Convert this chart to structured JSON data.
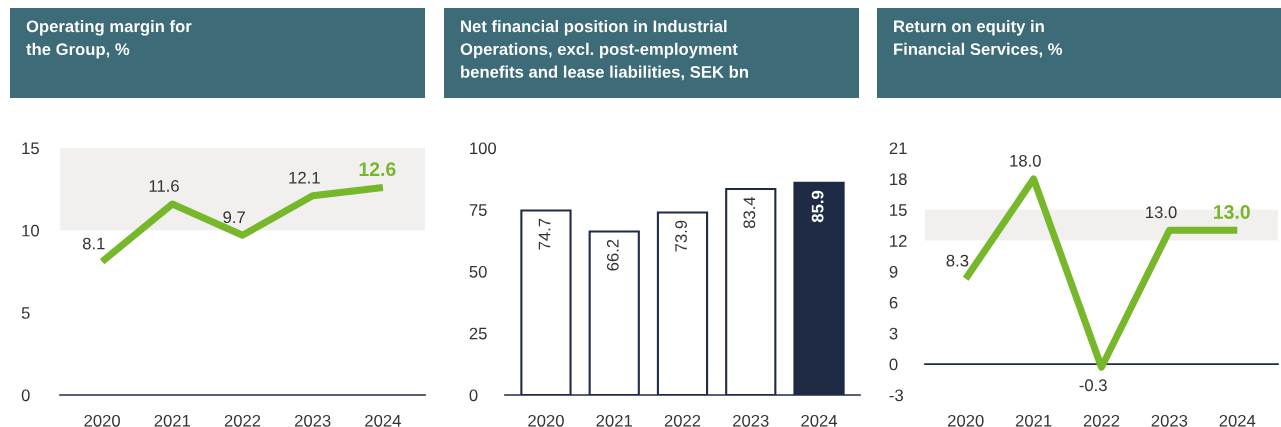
{
  "chart_data": [
    {
      "type": "line",
      "title": "Operating margin for\nthe Group, %",
      "categories": [
        "2020",
        "2021",
        "2022",
        "2023",
        "2024"
      ],
      "series": [
        {
          "color": "#76b82a",
          "values": [
            8.1,
            11.6,
            9.7,
            12.1,
            12.6
          ],
          "value_labels": [
            "8.1",
            "11.6",
            "9.7",
            "12.1",
            "12.6"
          ]
        }
      ],
      "ylim": [
        0,
        15
      ],
      "yticks": [
        0,
        5,
        10,
        15
      ],
      "grid": false,
      "bands": [
        {
          "axis": "y",
          "from": 10,
          "to": 15,
          "color": "#f1f0ee"
        }
      ]
    },
    {
      "type": "bar",
      "title": "Net financial position in Industrial\nOperations, excl. post-employment\nbenefits and lease liabilities, SEK bn",
      "categories": [
        "2020",
        "2021",
        "2022",
        "2023",
        "2024"
      ],
      "values": [
        74.7,
        66.2,
        73.9,
        83.4,
        85.9
      ],
      "colors": [
        "#ffffff",
        "#ffffff",
        "#ffffff",
        "#ffffff",
        "#1f2a44"
      ],
      "ylim": [
        0,
        100
      ],
      "yticks": [
        0,
        25,
        50,
        75,
        100
      ],
      "grid": false,
      "data_labels": true
    },
    {
      "type": "line",
      "title": "Return on equity in\nFinancial Services, %",
      "categories": [
        "2020",
        "2021",
        "2022",
        "2023",
        "2024"
      ],
      "series": [
        {
          "color": "#76b82a",
          "values": [
            8.3,
            18.0,
            -0.3,
            13.0,
            13.0
          ],
          "value_labels": [
            "8.3",
            "18.0",
            "-0.3",
            "13.0",
            "13.0"
          ]
        }
      ],
      "ylim": [
        -3,
        21
      ],
      "yticks": [
        -3,
        0,
        3,
        6,
        9,
        12,
        15,
        18,
        21
      ],
      "grid": false,
      "bands": [
        {
          "axis": "y",
          "from": 12,
          "to": 15,
          "color": "#f1f0ee"
        }
      ],
      "ref_lines": [
        {
          "axis": "y",
          "value": 0,
          "color": "#1f2a44"
        }
      ]
    }
  ]
}
